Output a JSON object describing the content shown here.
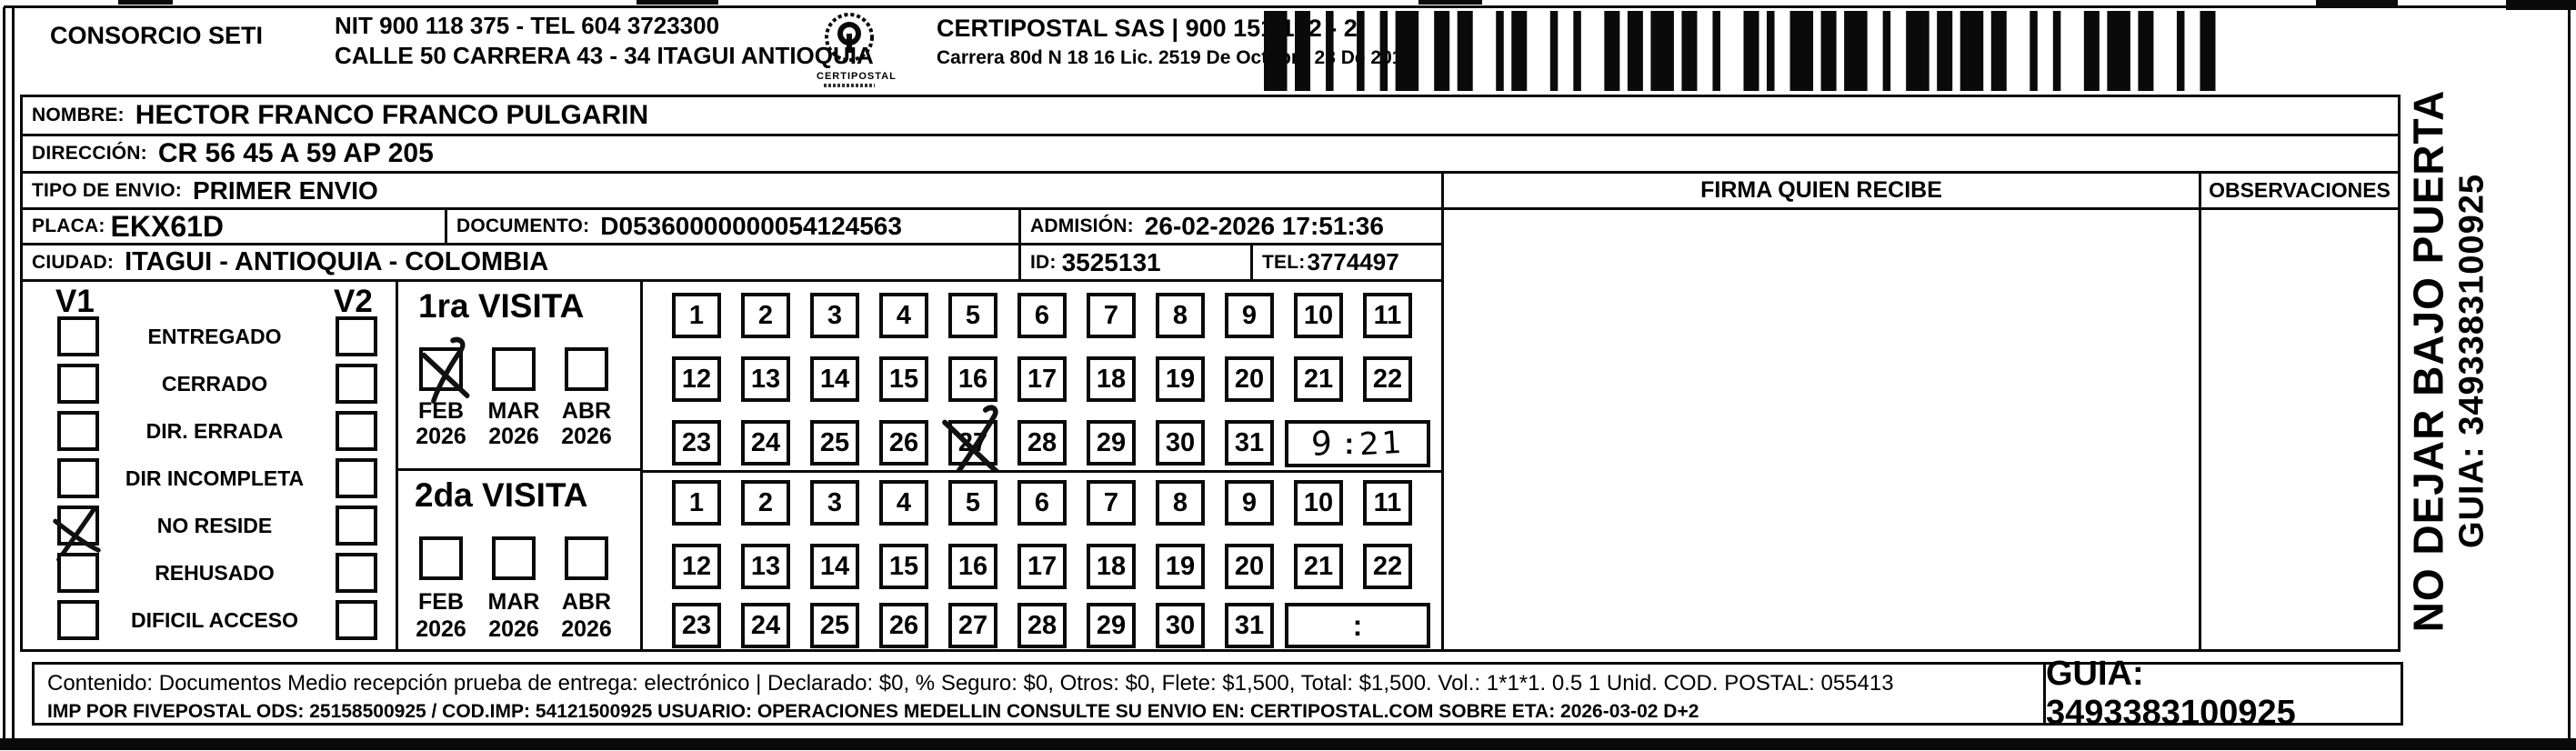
{
  "header": {
    "company": "CONSORCIO SETI",
    "nit_line": "NIT 900 118 375 - TEL 604 3723300",
    "address_line": "CALLE 50 CARRERA 43 - 34 ITAGUI ANTIOQUIA",
    "logo_caption": "CERTIPOSTAL",
    "right_company": "CERTIPOSTAL SAS | 900 151 122 - 2",
    "right_address": "Carrera 80d N 18 16  Lic. 2519 De Octubre 23 De 2015"
  },
  "recipient": {
    "nombre_label": "NOMBRE:",
    "nombre": "HECTOR FRANCO FRANCO PULGARIN",
    "direccion_label": "DIRECCIÓN:",
    "direccion": "CR 56 45 A 59 AP 205",
    "tipo_label": "TIPO DE ENVIO:",
    "tipo": "PRIMER ENVIO",
    "placa_label": "PLACA:",
    "placa": "EKX61D",
    "documento_label": "DOCUMENTO:",
    "documento": "D05360000000054124563",
    "admision_label": "ADMISIÓN:",
    "admision": "26-02-2026 17:51:36",
    "ciudad_label": "CIUDAD:",
    "ciudad": "ITAGUI - ANTIOQUIA - COLOMBIA",
    "id_label": "ID:",
    "id": "3525131",
    "tel_label": "TEL:",
    "tel": "3774497"
  },
  "status": {
    "v1_label": "V1",
    "v2_label": "V2",
    "options": [
      "ENTREGADO",
      "CERRADO",
      "DIR. ERRADA",
      "DIR INCOMPLETA",
      "NO RESIDE",
      "REHUSADO",
      "DIFICIL ACCESO"
    ],
    "v1_checked": "NO RESIDE"
  },
  "visits": {
    "days": [
      "1",
      "2",
      "3",
      "4",
      "5",
      "6",
      "7",
      "8",
      "9",
      "10",
      "11",
      "12",
      "13",
      "14",
      "15",
      "16",
      "17",
      "18",
      "19",
      "20",
      "21",
      "22",
      "23",
      "24",
      "25",
      "26",
      "27",
      "28",
      "29",
      "30",
      "31"
    ],
    "first": {
      "title": "1ra VISITA",
      "months": [
        "FEB",
        "MAR",
        "ABR"
      ],
      "years": [
        "2026",
        "2026",
        "2026"
      ],
      "checked_month": "FEB",
      "crossed_day": "27",
      "time": {
        "hour": "9",
        "colon": ":",
        "minute": "21"
      }
    },
    "second": {
      "title": "2da VISITA",
      "months": [
        "FEB",
        "MAR",
        "ABR"
      ],
      "years": [
        "2026",
        "2026",
        "2026"
      ],
      "time_colon": ":"
    }
  },
  "signature": {
    "firma_header": "FIRMA QUIEN RECIBE",
    "observaciones_header": "OBSERVACIONES"
  },
  "side_note": {
    "line1": "NO DEJAR BAJO PUERTA",
    "line2": "GUIA: 3493383100925"
  },
  "footer": {
    "line1": "Contenido: Documentos Medio recepción prueba de entrega: electrónico | Declarado: $0, % Seguro: $0, Otros: $0, Flete: $1,500, Total: $1,500. Vol.: 1*1*1. 0.5  1 Unid. COD. POSTAL: 055413",
    "line2": "IMP POR FIVEPOSTAL ODS: 25158500925 / COD.IMP: 54121500925 USUARIO: OPERACIONES MEDELLIN CONSULTE SU ENVIO EN: CERTIPOSTAL.COM SOBRE ETA: 2026-03-02 D+2",
    "guia": "GUIA: 3493383100925"
  }
}
